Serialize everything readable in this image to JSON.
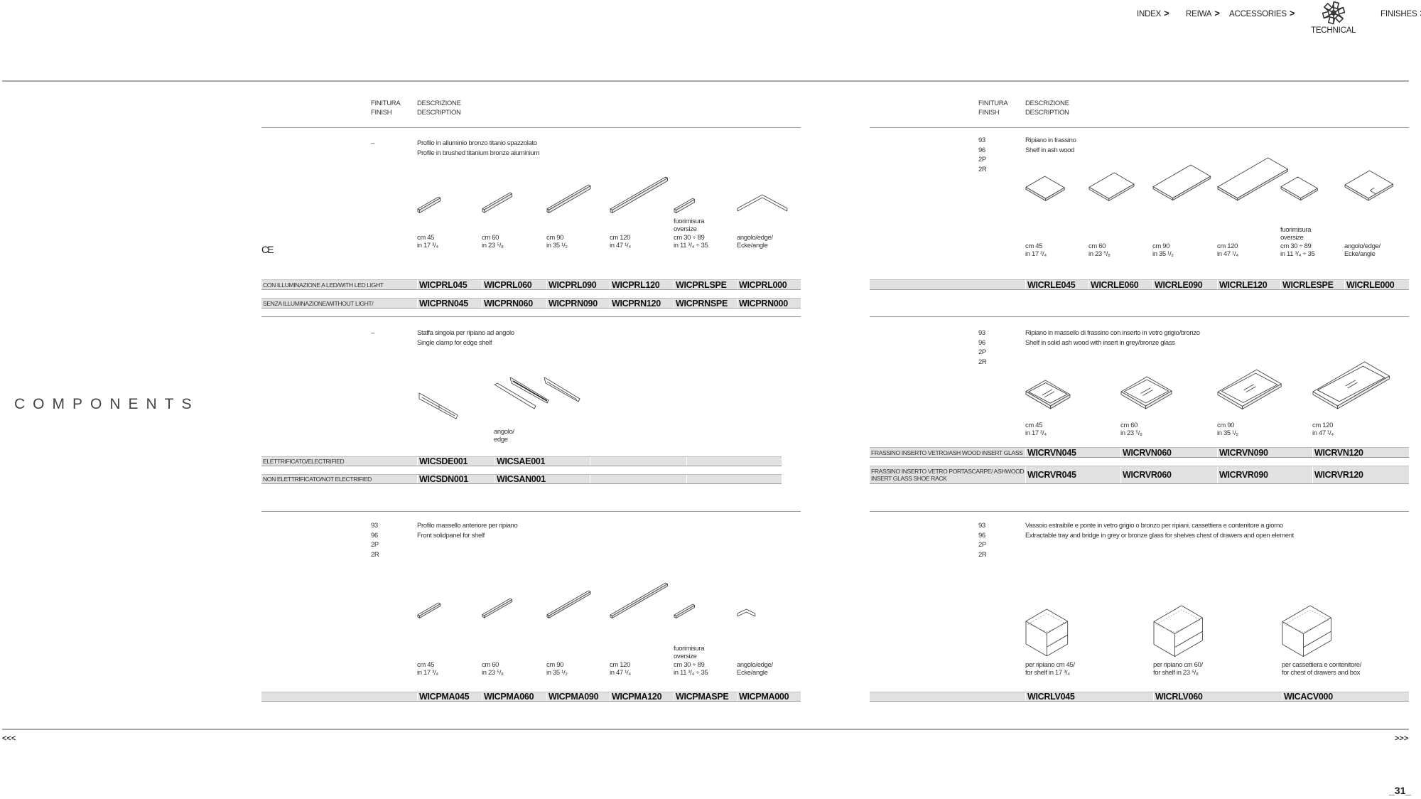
{
  "nav": {
    "items": [
      {
        "label": "INDEX",
        "arrow": ">"
      },
      {
        "label": "REIWA",
        "arrow": ">"
      },
      {
        "label": "ACCESSORIES",
        "arrow": ">"
      },
      {
        "label": "TECHNICAL",
        "icon": "snowflake-logo-icon"
      },
      {
        "label": "FINISHES",
        "arrow": ">"
      }
    ]
  },
  "page_title": "COMPONENTS",
  "headers": {
    "finish": [
      "FINITURA",
      "FINISH"
    ],
    "description": [
      "DESCRIZIONE",
      "DESCRIPTION"
    ]
  },
  "ce_mark": "CE",
  "sections": [
    {
      "finish": [
        "–"
      ],
      "description": [
        "Profilo in alluminio bronzo titanio spazzolato",
        "Profile in brushed titanium bronze aluminium"
      ],
      "items": [
        {
          "drawing": "profile",
          "label": [
            "cm 45",
            "in 17 ³/₄"
          ]
        },
        {
          "drawing": "profile",
          "label": [
            "cm 60",
            "in 23 ⁵/₈"
          ]
        },
        {
          "drawing": "profile",
          "label": [
            "cm 90",
            "in 35 ¹/₂"
          ]
        },
        {
          "drawing": "profile",
          "label": [
            "cm 120",
            "in 47 ¹/₄"
          ]
        },
        {
          "drawing": "profile",
          "label": [
            "fuorimisura",
            "oversize",
            "cm 30 ÷ 89",
            "in 11 ³/₄ ÷ 35"
          ]
        },
        {
          "drawing": "profile-angle",
          "label": [
            "angolo/edge/",
            "Ecke/angle"
          ]
        }
      ],
      "rows": [
        {
          "label": "CON ILLUMINAZIONE A LED/WITH LED LIGHT",
          "codes": [
            "WICPRL045",
            "WICPRL060",
            "WICPRL090",
            "WICPRL120",
            "WICPRLSPE",
            "WICPRL000"
          ]
        },
        {
          "label": "SENZA ILLUMINAZIONE/WITHOUT LIGHT/",
          "codes": [
            "WICPRN045",
            "WICPRN060",
            "WICPRN090",
            "WICPRN120",
            "WICPRNSPE",
            "WICPRN000"
          ]
        }
      ]
    },
    {
      "finish": [
        "–"
      ],
      "description": [
        "Staffa singola per ripiano ad angolo",
        "Single clamp for edge shelf"
      ],
      "items": [
        {
          "drawing": "clamp",
          "label": []
        },
        {
          "drawing": "clamp-angle",
          "label": [
            "angolo/",
            "edge"
          ]
        }
      ],
      "rows": [
        {
          "label": "ELETTRIFICATO/ELECTRIFIED",
          "codes": [
            "WICSDE001",
            "WICSAE001",
            "",
            ""
          ]
        },
        {
          "label": "NON ELETTRIFICATO/NOT ELECTRIFIED",
          "codes": [
            "WICSDN001",
            "WICSAN001",
            "",
            ""
          ]
        }
      ]
    },
    {
      "finish": [
        "93",
        "96",
        "2P",
        "2R"
      ],
      "description": [
        "Profilo massello anteriore per ripiano",
        "Front solidpanel for shelf"
      ],
      "items": [
        {
          "drawing": "front-panel",
          "label": [
            "cm 45",
            "in 17 ³/₄"
          ]
        },
        {
          "drawing": "front-panel",
          "label": [
            "cm 60",
            "in 23 ⁵/₈"
          ]
        },
        {
          "drawing": "front-panel",
          "label": [
            "cm 90",
            "in 35 ¹/₂"
          ]
        },
        {
          "drawing": "front-panel",
          "label": [
            "cm 120",
            "in 47 ¹/₄"
          ]
        },
        {
          "drawing": "front-panel",
          "label": [
            "fuorimisura",
            "oversize",
            "cm 30 ÷ 89",
            "in 11 ³/₄ ÷ 35"
          ]
        },
        {
          "drawing": "front-panel-angle",
          "label": [
            "angolo/edge/",
            "Ecke/angle"
          ]
        }
      ],
      "rows": [
        {
          "label": "",
          "codes": [
            "WICPMA045",
            "WICPMA060",
            "WICPMA090",
            "WICPMA120",
            "WICPMASPE",
            "WICPMA000"
          ]
        }
      ]
    },
    {
      "finish": [
        "93",
        "96",
        "2P",
        "2R"
      ],
      "description": [
        "Ripiano in frassino",
        "Shelf in ash wood"
      ],
      "items": [
        {
          "drawing": "shelf",
          "label": [
            "cm 45",
            "in 17 ³/₄"
          ]
        },
        {
          "drawing": "shelf",
          "label": [
            "cm 60",
            "in 23 ⁵/₈"
          ]
        },
        {
          "drawing": "shelf",
          "label": [
            "cm 90",
            "in 35 ¹/₂"
          ]
        },
        {
          "drawing": "shelf",
          "label": [
            "cm 120",
            "in 47 ¹/₄"
          ]
        },
        {
          "drawing": "shelf",
          "label": [
            "fuorimisura",
            "oversize",
            "cm 30 ÷ 89",
            "in 11 ³/₄ ÷ 35"
          ]
        },
        {
          "drawing": "shelf-angle",
          "label": [
            "angolo/edge/",
            "Ecke/angle"
          ]
        }
      ],
      "rows": [
        {
          "label": "",
          "codes": [
            "WICRLE045",
            "WICRLE060",
            "WICRLE090",
            "WICRLE120",
            "WICRLESPE",
            "WICRLE000"
          ]
        }
      ]
    },
    {
      "finish": [
        "93",
        "96",
        "2P",
        "2R"
      ],
      "description": [
        "Ripiano in massello di frassino con inserto in vetro grigio/bronzo",
        "Shelf in solid ash wood with insert in grey/bronze glass"
      ],
      "items": [
        {
          "drawing": "glass-shelf",
          "label": [
            "cm 45",
            "in 17 ³/₄"
          ]
        },
        {
          "drawing": "glass-shelf",
          "label": [
            "cm 60",
            "in 23 ⁵/₈"
          ]
        },
        {
          "drawing": "glass-shelf",
          "label": [
            "cm 90",
            "in 35 ¹/₂"
          ]
        },
        {
          "drawing": "glass-shelf",
          "label": [
            "cm 120",
            "in 47 ¹/₄"
          ]
        }
      ],
      "rows": [
        {
          "label": "FRASSINO INSERTO VETRO/ASH WOOD INSERT GLASS",
          "codes": [
            "WICRVN045",
            "WICRVN060",
            "WICRVN090",
            "WICRVN120"
          ]
        },
        {
          "label": "FRASSINO INSERTO VETRO PORTASCARPE/ ASHWOOD INSERT GLASS SHOE RACK",
          "codes": [
            "WICRVR045",
            "WICRVR060",
            "WICRVR090",
            "WICRVR120"
          ]
        }
      ]
    },
    {
      "finish": [
        "93",
        "96",
        "2P",
        "2R"
      ],
      "description": [
        "Vassoio estraibile e ponte in vetro grigio o bronzo per ripiani, cassettiera e contenitore a giorno",
        "Extractable tray and bridge in grey or bronze glass for shelves chest of drawers and open element"
      ],
      "items": [
        {
          "drawing": "tray",
          "label": [
            "per ripiano cm 45/",
            "for shelf in 17 ³/₄"
          ]
        },
        {
          "drawing": "tray",
          "label": [
            "per ripiano cm 60/",
            "for shelf in 23 ⁵/₈"
          ]
        },
        {
          "drawing": "tray",
          "label": [
            "per cassettiera e contenitore/",
            "for chest of drawers and box"
          ]
        }
      ],
      "rows": [
        {
          "label": "",
          "codes": [
            "WICRLV045",
            "WICRLV060",
            "WICACV000"
          ]
        }
      ]
    }
  ],
  "footer": {
    "prev": "<<<",
    "next": ">>>",
    "page": "_31_"
  },
  "colors": {
    "rule": "#a8a8a8",
    "code_row": "#e1e1e1",
    "text": "#2a2a2a"
  }
}
